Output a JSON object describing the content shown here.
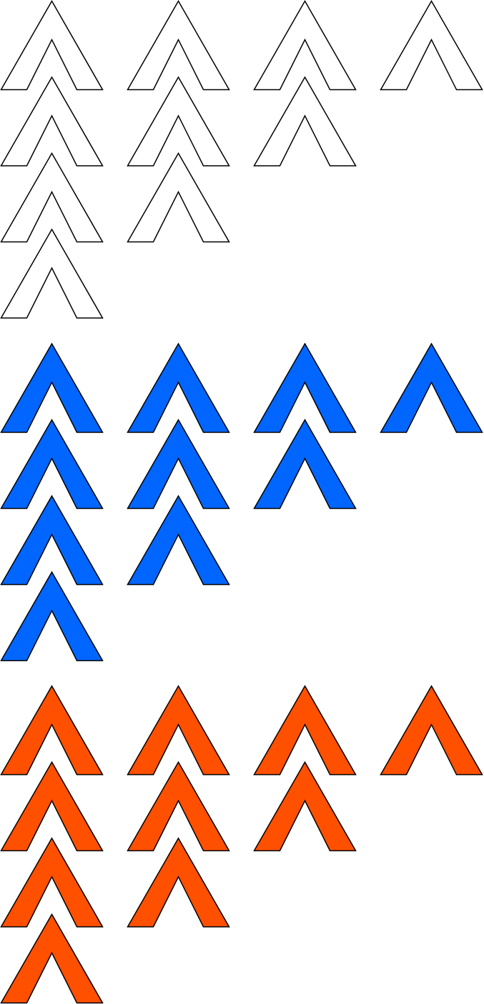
{
  "groups": [
    {
      "name": "white-set",
      "fill": "#ffffff",
      "stroke": "#000000",
      "counts": [
        4,
        3,
        2,
        1
      ]
    },
    {
      "name": "blue-set",
      "fill": "#0066ff",
      "stroke": "#000000",
      "counts": [
        4,
        3,
        2,
        1
      ]
    },
    {
      "name": "orange-set",
      "fill": "#ff5000",
      "stroke": "#000000",
      "counts": [
        4,
        3,
        2,
        1
      ]
    }
  ],
  "icon": "chevron-up-icon"
}
